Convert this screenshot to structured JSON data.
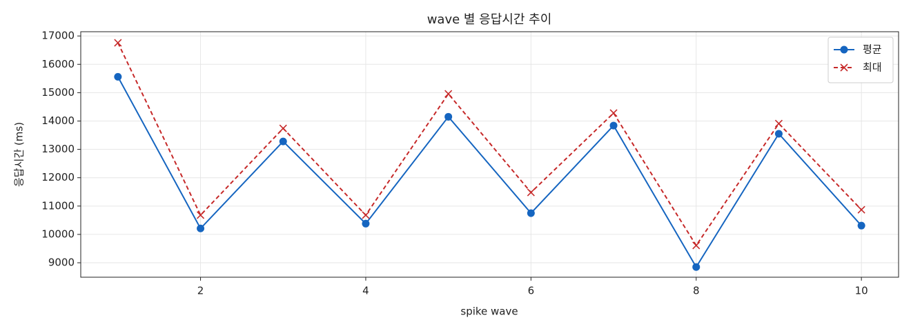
{
  "chart_data": {
    "type": "line",
    "title": "wave 별 응답시간 추이",
    "xlabel": "spike wave",
    "ylabel": "응답시간 (ms)",
    "x": [
      1,
      2,
      3,
      4,
      5,
      6,
      7,
      8,
      9,
      10
    ],
    "series": [
      {
        "name": "평균",
        "color": "#1565c0",
        "marker": "o",
        "linestyle": "solid",
        "values": [
          15560,
          10210,
          13280,
          10380,
          14150,
          10750,
          13840,
          8850,
          13550,
          10310
        ]
      },
      {
        "name": "최대",
        "color": "#c62828",
        "marker": "x",
        "linestyle": "dashed",
        "values": [
          16760,
          10680,
          13740,
          10680,
          14960,
          11480,
          14280,
          9610,
          13910,
          10870
        ]
      }
    ],
    "xlim": [
      0.55,
      10.45
    ],
    "xticks": [
      2,
      4,
      6,
      8,
      10
    ],
    "ylim": [
      8490,
      17150
    ],
    "yticks": [
      9000,
      10000,
      11000,
      12000,
      13000,
      14000,
      15000,
      16000,
      17000
    ],
    "grid": true,
    "legend": "upper right"
  }
}
